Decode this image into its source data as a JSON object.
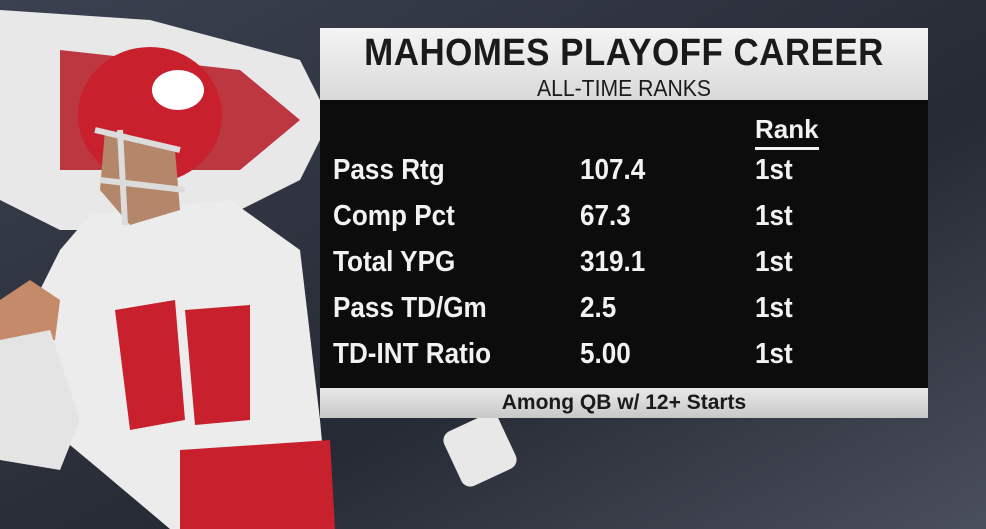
{
  "header": {
    "title": "MAHOMES PLAYOFF CAREER",
    "subtitle": "ALL-TIME RANKS"
  },
  "table": {
    "rank_header": "Rank",
    "rows": [
      [
        "Pass Rtg",
        "107.4",
        "1st"
      ],
      [
        "Comp Pct",
        "67.3",
        "1st"
      ],
      [
        "Total YPG",
        "319.1",
        "1st"
      ],
      [
        "Pass TD/Gm",
        "2.5",
        "1st"
      ],
      [
        "TD-INT Ratio",
        "5.00",
        "1st"
      ]
    ]
  },
  "footer": "Among QB w/ 12+ Starts"
}
